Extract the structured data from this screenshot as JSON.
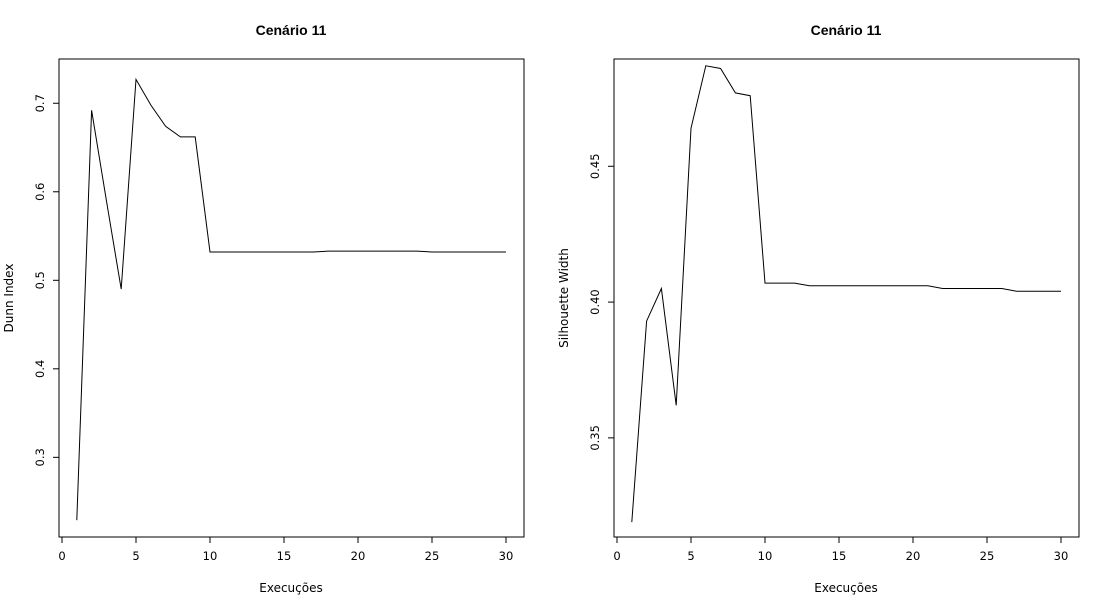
{
  "chart_data": [
    {
      "type": "line",
      "title": "Cenário 11",
      "xlabel": "Execuções",
      "ylabel": "Dunn Index",
      "xlim": [
        0,
        30
      ],
      "ylim": [
        0.21,
        0.75
      ],
      "x_ticks": [
        0,
        5,
        10,
        15,
        20,
        25,
        30
      ],
      "y_ticks": [
        0.3,
        0.4,
        0.5,
        0.6,
        0.7
      ],
      "x_tick_labels": [
        "0",
        "5",
        "10",
        "15",
        "20",
        "25",
        "30"
      ],
      "y_tick_labels": [
        "0.3",
        "0.4",
        "0.5",
        "0.6",
        "0.7"
      ],
      "grid": false,
      "x": [
        1,
        2,
        3,
        4,
        5,
        6,
        7,
        8,
        9,
        10,
        11,
        12,
        13,
        14,
        15,
        16,
        17,
        18,
        19,
        20,
        21,
        22,
        23,
        24,
        25,
        26,
        27,
        28,
        29,
        30
      ],
      "y": [
        0.229,
        0.692,
        0.59,
        0.49,
        0.727,
        0.698,
        0.674,
        0.662,
        0.662,
        0.532,
        0.532,
        0.532,
        0.532,
        0.532,
        0.532,
        0.532,
        0.532,
        0.533,
        0.533,
        0.533,
        0.533,
        0.533,
        0.533,
        0.533,
        0.532,
        0.532,
        0.532,
        0.532,
        0.532,
        0.532
      ]
    },
    {
      "type": "line",
      "title": "Cenário 11",
      "xlabel": "Execuções",
      "ylabel": "Silhouette Width",
      "xlim": [
        0,
        30
      ],
      "ylim": [
        0.3135,
        0.4895
      ],
      "x_ticks": [
        0,
        5,
        10,
        15,
        20,
        25,
        30
      ],
      "y_ticks": [
        0.35,
        0.4,
        0.45
      ],
      "x_tick_labels": [
        "0",
        "5",
        "10",
        "15",
        "20",
        "25",
        "30"
      ],
      "y_tick_labels": [
        "0.35",
        "0.40",
        "0.45"
      ],
      "grid": false,
      "x": [
        1,
        2,
        3,
        4,
        5,
        6,
        7,
        8,
        9,
        10,
        11,
        12,
        13,
        14,
        15,
        16,
        17,
        18,
        19,
        20,
        21,
        22,
        23,
        24,
        25,
        26,
        27,
        28,
        29,
        30
      ],
      "y": [
        0.319,
        0.393,
        0.405,
        0.362,
        0.464,
        0.487,
        0.486,
        0.477,
        0.476,
        0.407,
        0.407,
        0.407,
        0.406,
        0.406,
        0.406,
        0.406,
        0.406,
        0.406,
        0.406,
        0.406,
        0.406,
        0.405,
        0.405,
        0.405,
        0.405,
        0.405,
        0.404,
        0.404,
        0.404,
        0.404
      ]
    }
  ]
}
